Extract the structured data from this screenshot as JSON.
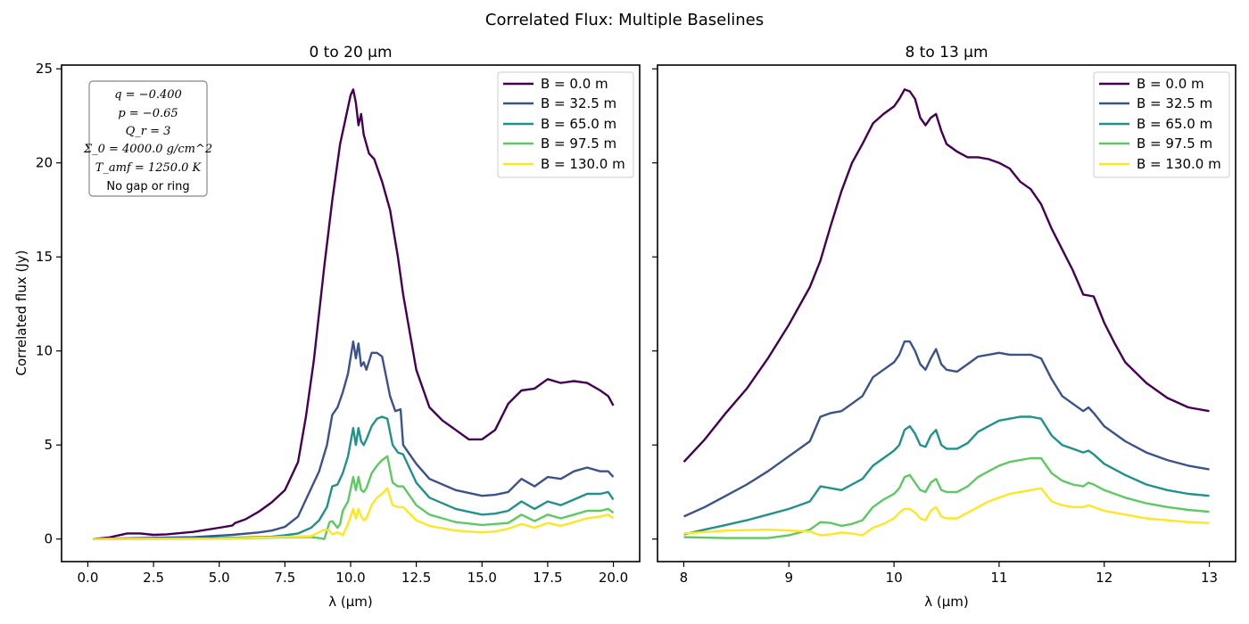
{
  "figure": {
    "suptitle": "Correlated Flux: Multiple Baselines"
  },
  "colors": {
    "B = 0.0 m": "#440154",
    "B = 32.5 m": "#3b528b",
    "B = 65.0 m": "#21918c",
    "B = 97.5 m": "#5ec962",
    "B = 130.0 m": "#fde725"
  },
  "parameters_box": {
    "lines": [
      "q = −0.400",
      "p = −0.65",
      "Q_r = 3",
      "Σ_0 = 4000.0 g/cm^2",
      "T_amf = 1250.0 K",
      "No gap or ring"
    ]
  },
  "chart_data": [
    {
      "type": "line",
      "title": "0 to 20 μm",
      "xlabel": "λ (μm)",
      "ylabel": "Correlated flux (Jy)",
      "xlim": [
        -1.0,
        21.0
      ],
      "ylim": [
        -1.2,
        25.2
      ],
      "xticks": [
        0.0,
        2.5,
        5.0,
        7.5,
        10.0,
        12.5,
        15.0,
        17.5,
        20.0
      ],
      "xtick_labels": [
        "0.0",
        "2.5",
        "5.0",
        "7.5",
        "10.0",
        "12.5",
        "15.0",
        "17.5",
        "20.0"
      ],
      "yticks": [
        0,
        5,
        10,
        15,
        20,
        25
      ],
      "ytick_labels": [
        "0",
        "5",
        "10",
        "15",
        "20",
        "25"
      ],
      "grid": false,
      "legend": "upper right",
      "series": [
        {
          "name": "B = 0.0 m",
          "x": [
            0.2,
            0.8,
            1.5,
            2.0,
            2.5,
            3.0,
            4.0,
            5.0,
            5.5,
            5.6,
            6.0,
            6.5,
            7.0,
            7.5,
            8.0,
            8.3,
            8.6,
            9.0,
            9.3,
            9.6,
            9.8,
            10.0,
            10.1,
            10.2,
            10.3,
            10.4,
            10.5,
            10.7,
            10.9,
            11.2,
            11.5,
            11.8,
            12.0,
            12.5,
            13.0,
            13.5,
            14.0,
            14.5,
            15.0,
            15.5,
            16.0,
            16.5,
            17.0,
            17.5,
            18.0,
            18.5,
            19.0,
            19.5,
            19.8,
            20.0
          ],
          "y": [
            0.0,
            0.08,
            0.3,
            0.3,
            0.22,
            0.25,
            0.38,
            0.6,
            0.72,
            0.85,
            1.05,
            1.45,
            1.95,
            2.6,
            4.1,
            6.5,
            9.5,
            14.5,
            18.0,
            21.0,
            22.3,
            23.6,
            23.9,
            23.2,
            22.0,
            22.6,
            21.5,
            20.5,
            20.2,
            19.0,
            17.5,
            15.0,
            13.0,
            9.0,
            7.0,
            6.3,
            5.8,
            5.3,
            5.3,
            5.8,
            7.2,
            7.9,
            8.0,
            8.5,
            8.3,
            8.4,
            8.3,
            7.9,
            7.6,
            7.1
          ]
        },
        {
          "name": "B = 32.5 m",
          "x": [
            0.2,
            2.0,
            4.0,
            5.5,
            6.5,
            7.0,
            7.5,
            8.0,
            8.5,
            8.8,
            9.1,
            9.3,
            9.5,
            9.7,
            9.9,
            10.1,
            10.2,
            10.3,
            10.4,
            10.5,
            10.6,
            10.8,
            11.0,
            11.2,
            11.5,
            11.7,
            11.9,
            12.0,
            12.5,
            13.0,
            14.0,
            15.0,
            15.5,
            16.0,
            16.5,
            17.0,
            17.5,
            18.0,
            18.5,
            19.0,
            19.5,
            19.8,
            20.0
          ],
          "y": [
            0.0,
            0.05,
            0.1,
            0.22,
            0.35,
            0.45,
            0.65,
            1.2,
            2.7,
            3.6,
            5.0,
            6.6,
            7.0,
            7.8,
            8.8,
            10.5,
            9.6,
            10.4,
            9.2,
            9.4,
            9.0,
            9.9,
            9.9,
            9.7,
            7.6,
            6.8,
            6.9,
            5.0,
            4.0,
            3.2,
            2.6,
            2.3,
            2.35,
            2.5,
            3.2,
            2.8,
            3.3,
            3.2,
            3.6,
            3.8,
            3.6,
            3.6,
            3.3
          ]
        },
        {
          "name": "B = 65.0 m",
          "x": [
            0.2,
            5.0,
            7.0,
            7.5,
            8.0,
            8.5,
            8.8,
            9.1,
            9.3,
            9.5,
            9.7,
            9.9,
            10.1,
            10.2,
            10.3,
            10.4,
            10.5,
            10.6,
            10.8,
            11.0,
            11.2,
            11.4,
            11.6,
            11.8,
            12.0,
            12.5,
            13.0,
            14.0,
            15.0,
            15.5,
            16.0,
            16.5,
            17.0,
            17.5,
            18.0,
            18.5,
            19.0,
            19.5,
            19.8,
            20.0
          ],
          "y": [
            0.0,
            0.05,
            0.12,
            0.2,
            0.3,
            0.6,
            1.0,
            1.7,
            2.8,
            2.9,
            3.5,
            4.4,
            5.9,
            5.0,
            5.9,
            5.2,
            5.0,
            5.3,
            6.0,
            6.4,
            6.5,
            6.4,
            5.0,
            4.6,
            4.5,
            3.0,
            2.2,
            1.6,
            1.3,
            1.35,
            1.5,
            2.0,
            1.6,
            2.0,
            1.8,
            2.1,
            2.4,
            2.4,
            2.5,
            2.1
          ]
        },
        {
          "name": "B = 97.5 m",
          "x": [
            0.2,
            5.0,
            8.0,
            8.5,
            8.8,
            9.0,
            9.2,
            9.3,
            9.5,
            9.6,
            9.7,
            9.9,
            10.1,
            10.2,
            10.3,
            10.4,
            10.5,
            10.6,
            10.8,
            11.0,
            11.2,
            11.4,
            11.6,
            11.8,
            12.0,
            12.5,
            13.0,
            14.0,
            15.0,
            15.5,
            16.0,
            16.5,
            17.0,
            17.5,
            18.0,
            18.5,
            19.0,
            19.5,
            19.8,
            20.0
          ],
          "y": [
            0.0,
            0.02,
            0.1,
            0.1,
            0.05,
            0.0,
            0.9,
            0.95,
            0.6,
            0.8,
            1.5,
            2.0,
            3.3,
            2.6,
            3.3,
            2.6,
            2.5,
            2.7,
            3.5,
            3.9,
            4.2,
            4.4,
            3.0,
            2.8,
            2.8,
            1.8,
            1.3,
            0.9,
            0.75,
            0.8,
            0.85,
            1.3,
            0.95,
            1.3,
            1.1,
            1.3,
            1.5,
            1.5,
            1.6,
            1.4
          ]
        },
        {
          "name": "B = 130.0 m",
          "x": [
            0.2,
            5.0,
            8.5,
            9.0,
            9.2,
            9.3,
            9.5,
            9.6,
            9.7,
            9.9,
            10.1,
            10.2,
            10.3,
            10.4,
            10.5,
            10.6,
            10.8,
            11.0,
            11.2,
            11.4,
            11.6,
            11.8,
            12.0,
            12.5,
            13.0,
            14.0,
            15.0,
            15.5,
            16.0,
            16.5,
            17.0,
            17.5,
            18.0,
            18.5,
            19.0,
            19.5,
            19.8,
            20.0
          ],
          "y": [
            0.0,
            0.02,
            0.15,
            0.5,
            0.45,
            0.25,
            0.35,
            0.3,
            0.2,
            0.8,
            1.6,
            1.1,
            1.6,
            1.2,
            1.0,
            1.1,
            1.8,
            2.2,
            2.4,
            2.7,
            1.8,
            1.7,
            1.7,
            1.0,
            0.7,
            0.45,
            0.35,
            0.4,
            0.55,
            0.8,
            0.6,
            0.85,
            0.7,
            0.9,
            1.1,
            1.2,
            1.3,
            1.1
          ]
        }
      ]
    },
    {
      "type": "line",
      "title": "8 to 13 μm",
      "xlabel": "λ (μm)",
      "ylabel": "",
      "xlim": [
        7.75,
        13.25
      ],
      "ylim": [
        -1.2,
        25.2
      ],
      "xticks": [
        8,
        9,
        10,
        11,
        12,
        13
      ],
      "xtick_labels": [
        "8",
        "9",
        "10",
        "11",
        "12",
        "13"
      ],
      "yticks": [
        0,
        5,
        10,
        15,
        20,
        25
      ],
      "grid": false,
      "legend": "upper right",
      "series": [
        {
          "name": "B = 0.0 m",
          "x": [
            8.0,
            8.2,
            8.4,
            8.6,
            8.8,
            9.0,
            9.2,
            9.3,
            9.4,
            9.5,
            9.6,
            9.7,
            9.8,
            9.9,
            10.0,
            10.05,
            10.1,
            10.15,
            10.2,
            10.25,
            10.3,
            10.35,
            10.4,
            10.45,
            10.5,
            10.6,
            10.7,
            10.8,
            10.9,
            11.0,
            11.1,
            11.2,
            11.3,
            11.4,
            11.5,
            11.6,
            11.7,
            11.8,
            11.9,
            12.0,
            12.1,
            12.2,
            12.4,
            12.6,
            12.8,
            13.0
          ],
          "y": [
            4.1,
            5.3,
            6.7,
            8.0,
            9.6,
            11.4,
            13.4,
            14.8,
            16.7,
            18.5,
            20.0,
            21.0,
            22.1,
            22.6,
            23.0,
            23.4,
            23.9,
            23.8,
            23.4,
            22.4,
            22.0,
            22.4,
            22.6,
            21.7,
            21.0,
            20.6,
            20.3,
            20.3,
            20.2,
            20.0,
            19.7,
            19.0,
            18.6,
            17.8,
            16.5,
            15.4,
            14.3,
            13.0,
            12.9,
            11.5,
            10.4,
            9.4,
            8.3,
            7.5,
            7.0,
            6.8
          ]
        },
        {
          "name": "B = 32.5 m",
          "x": [
            8.0,
            8.2,
            8.4,
            8.6,
            8.8,
            9.0,
            9.2,
            9.3,
            9.4,
            9.5,
            9.6,
            9.7,
            9.8,
            9.9,
            10.0,
            10.05,
            10.1,
            10.15,
            10.2,
            10.25,
            10.3,
            10.35,
            10.4,
            10.45,
            10.5,
            10.6,
            10.7,
            10.8,
            10.9,
            11.0,
            11.1,
            11.2,
            11.3,
            11.4,
            11.5,
            11.6,
            11.7,
            11.8,
            11.85,
            11.9,
            12.0,
            12.2,
            12.4,
            12.6,
            12.8,
            13.0
          ],
          "y": [
            1.2,
            1.7,
            2.3,
            2.9,
            3.6,
            4.4,
            5.2,
            6.5,
            6.7,
            6.8,
            7.2,
            7.6,
            8.6,
            9.0,
            9.4,
            9.8,
            10.5,
            10.5,
            10.0,
            9.3,
            9.0,
            9.6,
            10.1,
            9.3,
            9.0,
            8.9,
            9.3,
            9.7,
            9.8,
            9.9,
            9.8,
            9.8,
            9.8,
            9.6,
            8.5,
            7.6,
            7.2,
            6.8,
            7.0,
            6.7,
            6.0,
            5.2,
            4.6,
            4.2,
            3.9,
            3.7
          ]
        },
        {
          "name": "B = 65.0 m",
          "x": [
            8.0,
            8.2,
            8.4,
            8.6,
            8.8,
            9.0,
            9.2,
            9.3,
            9.4,
            9.5,
            9.6,
            9.7,
            9.8,
            9.9,
            10.0,
            10.05,
            10.1,
            10.15,
            10.2,
            10.25,
            10.3,
            10.35,
            10.4,
            10.45,
            10.5,
            10.6,
            10.7,
            10.8,
            10.9,
            11.0,
            11.1,
            11.2,
            11.3,
            11.4,
            11.5,
            11.6,
            11.7,
            11.8,
            11.85,
            11.9,
            12.0,
            12.2,
            12.4,
            12.6,
            12.8,
            13.0
          ],
          "y": [
            0.25,
            0.5,
            0.75,
            1.0,
            1.3,
            1.6,
            2.0,
            2.8,
            2.7,
            2.6,
            2.9,
            3.2,
            3.9,
            4.3,
            4.7,
            5.0,
            5.8,
            6.0,
            5.6,
            5.0,
            4.9,
            5.5,
            5.8,
            5.0,
            4.8,
            4.8,
            5.1,
            5.7,
            6.0,
            6.3,
            6.4,
            6.5,
            6.5,
            6.4,
            5.5,
            5.0,
            4.8,
            4.6,
            4.7,
            4.5,
            4.0,
            3.4,
            2.9,
            2.6,
            2.4,
            2.3
          ]
        },
        {
          "name": "B = 97.5 m",
          "x": [
            8.0,
            8.4,
            8.8,
            9.0,
            9.2,
            9.3,
            9.4,
            9.5,
            9.6,
            9.7,
            9.8,
            9.9,
            10.0,
            10.05,
            10.1,
            10.15,
            10.2,
            10.25,
            10.3,
            10.35,
            10.4,
            10.45,
            10.5,
            10.6,
            10.7,
            10.8,
            10.9,
            11.0,
            11.1,
            11.2,
            11.3,
            11.4,
            11.5,
            11.6,
            11.7,
            11.8,
            11.85,
            11.9,
            12.0,
            12.2,
            12.4,
            12.6,
            12.8,
            13.0
          ],
          "y": [
            0.1,
            0.05,
            0.05,
            0.2,
            0.5,
            0.9,
            0.85,
            0.7,
            0.8,
            1.0,
            1.7,
            2.1,
            2.4,
            2.7,
            3.3,
            3.4,
            3.0,
            2.6,
            2.5,
            3.0,
            3.2,
            2.6,
            2.5,
            2.5,
            2.8,
            3.3,
            3.6,
            3.9,
            4.1,
            4.2,
            4.3,
            4.3,
            3.5,
            3.1,
            2.9,
            2.8,
            3.0,
            2.9,
            2.6,
            2.2,
            1.9,
            1.7,
            1.55,
            1.45
          ]
        },
        {
          "name": "B = 130.0 m",
          "x": [
            8.0,
            8.4,
            8.8,
            9.0,
            9.2,
            9.3,
            9.4,
            9.5,
            9.6,
            9.7,
            9.8,
            9.9,
            10.0,
            10.05,
            10.1,
            10.15,
            10.2,
            10.25,
            10.3,
            10.35,
            10.4,
            10.45,
            10.5,
            10.6,
            10.7,
            10.8,
            10.9,
            11.0,
            11.1,
            11.2,
            11.3,
            11.4,
            11.5,
            11.6,
            11.7,
            11.8,
            11.85,
            11.9,
            12.0,
            12.2,
            12.4,
            12.6,
            12.8,
            13.0
          ],
          "y": [
            0.3,
            0.45,
            0.5,
            0.45,
            0.4,
            0.2,
            0.25,
            0.35,
            0.3,
            0.2,
            0.6,
            0.8,
            1.1,
            1.4,
            1.6,
            1.6,
            1.4,
            1.1,
            1.0,
            1.5,
            1.7,
            1.2,
            1.1,
            1.1,
            1.4,
            1.7,
            2.0,
            2.2,
            2.4,
            2.5,
            2.6,
            2.7,
            2.0,
            1.8,
            1.7,
            1.7,
            1.8,
            1.7,
            1.5,
            1.3,
            1.1,
            1.0,
            0.9,
            0.85
          ]
        }
      ]
    }
  ]
}
